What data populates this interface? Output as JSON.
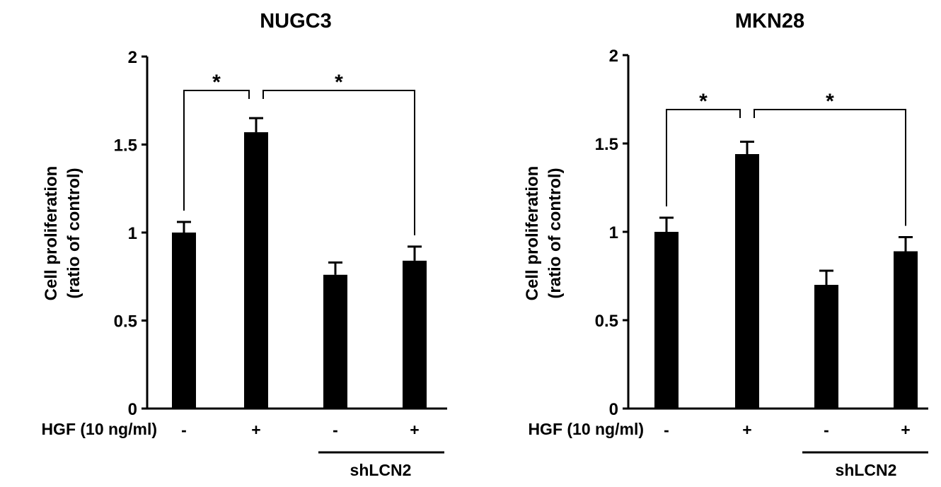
{
  "chart_data": [
    {
      "type": "bar",
      "title": "NUGC3",
      "ylabel_line1": "Cell proliferation",
      "ylabel_line2": "(ratio of control)",
      "ylim": [
        0,
        2
      ],
      "yticks": [
        "0",
        "0.5",
        "1",
        "1.5",
        "2"
      ],
      "row_label": "HGF (10 ng/ml)",
      "categories": [
        "-",
        "+",
        "-",
        "+"
      ],
      "values": [
        1.0,
        1.57,
        0.76,
        0.84
      ],
      "errors": [
        0.06,
        0.08,
        0.07,
        0.08
      ],
      "group_label": "shLCN2",
      "significance": [
        {
          "from": 0,
          "to": 1,
          "label": "*"
        },
        {
          "from": 1,
          "to": 3,
          "label": "*"
        }
      ],
      "color": "#000000"
    },
    {
      "type": "bar",
      "title": "MKN28",
      "ylabel_line1": "Cell proliferation",
      "ylabel_line2": "(ratio of control)",
      "ylim": [
        0,
        2
      ],
      "yticks": [
        "0",
        "0.5",
        "1",
        "1.5",
        "2"
      ],
      "row_label": "HGF (10 ng/ml)",
      "categories": [
        "-",
        "+",
        "-",
        "+"
      ],
      "values": [
        1.0,
        1.44,
        0.7,
        0.89
      ],
      "errors": [
        0.08,
        0.07,
        0.08,
        0.08
      ],
      "group_label": "shLCN2",
      "significance": [
        {
          "from": 0,
          "to": 1,
          "label": "*"
        },
        {
          "from": 1,
          "to": 3,
          "label": "*"
        }
      ],
      "color": "#000000"
    }
  ]
}
